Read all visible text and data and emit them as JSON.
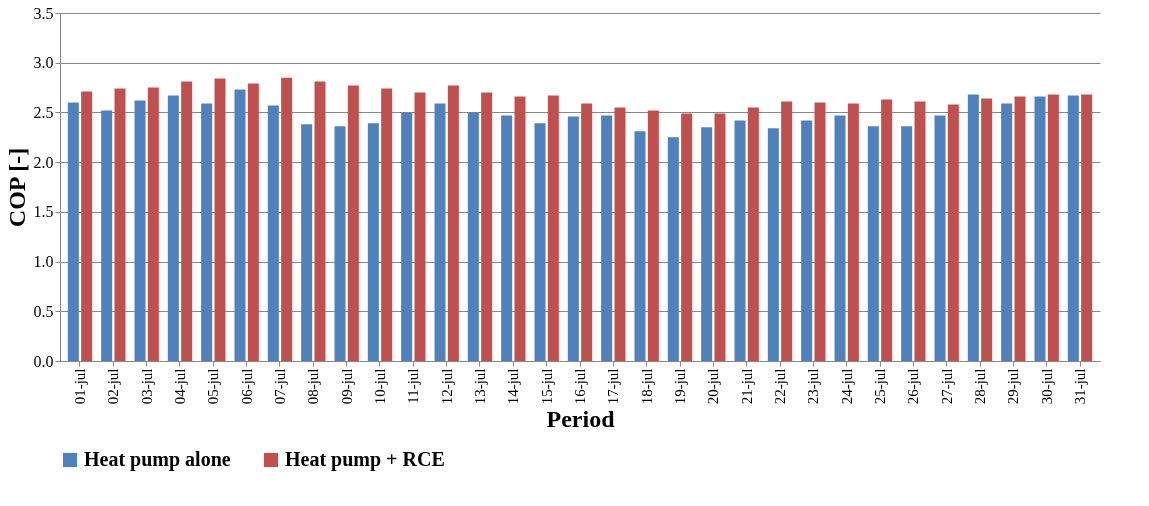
{
  "chart_data": {
    "type": "bar",
    "xlabel": "Period",
    "ylabel": "COP [-]",
    "categories": [
      "01-jul",
      "02-jul",
      "03-jul",
      "04-jul",
      "05-jul",
      "06-jul",
      "07-jul",
      "08-jul",
      "09-jul",
      "10-jul",
      "11-jul",
      "12-jul",
      "13-jul",
      "14-jul",
      "15-jul",
      "16-jul",
      "17-jul",
      "18-jul",
      "19-jul",
      "20-jul",
      "21-jul",
      "22-jul",
      "23-jul",
      "24-jul",
      "25-jul",
      "26-jul",
      "27-jul",
      "28-jul",
      "29-jul",
      "30-jul",
      "31-jul"
    ],
    "series": [
      {
        "name": "Heat pump alone",
        "color": "#4f81bd",
        "values": [
          2.6,
          2.52,
          2.62,
          2.67,
          2.59,
          2.73,
          2.57,
          2.38,
          2.36,
          2.39,
          2.5,
          2.59,
          2.5,
          2.47,
          2.39,
          2.46,
          2.47,
          2.31,
          2.25,
          2.35,
          2.42,
          2.34,
          2.42,
          2.47,
          2.36,
          2.36,
          2.47,
          2.68,
          2.59,
          2.66,
          2.67
        ]
      },
      {
        "name": "Heat pump + RCE",
        "color": "#c0504d",
        "values": [
          2.71,
          2.74,
          2.75,
          2.81,
          2.84,
          2.79,
          2.85,
          2.81,
          2.77,
          2.74,
          2.7,
          2.77,
          2.7,
          2.66,
          2.67,
          2.59,
          2.55,
          2.52,
          2.49,
          2.49,
          2.55,
          2.61,
          2.6,
          2.59,
          2.63,
          2.61,
          2.58,
          2.64,
          2.66,
          2.68,
          2.68
        ]
      }
    ],
    "ylim": [
      0,
      3.5
    ],
    "yticks": [
      {
        "value": 0,
        "label": "0.0"
      },
      {
        "value": 0.5,
        "label": "0.5"
      },
      {
        "value": 1,
        "label": "1.0"
      },
      {
        "value": 1.5,
        "label": "1.5"
      },
      {
        "value": 2,
        "label": "2.0"
      },
      {
        "value": 2.5,
        "label": "2.5"
      },
      {
        "value": 3,
        "label": "3.0"
      },
      {
        "value": 3.5,
        "label": "3.5"
      }
    ],
    "grid": "y",
    "legend": "bottom"
  }
}
